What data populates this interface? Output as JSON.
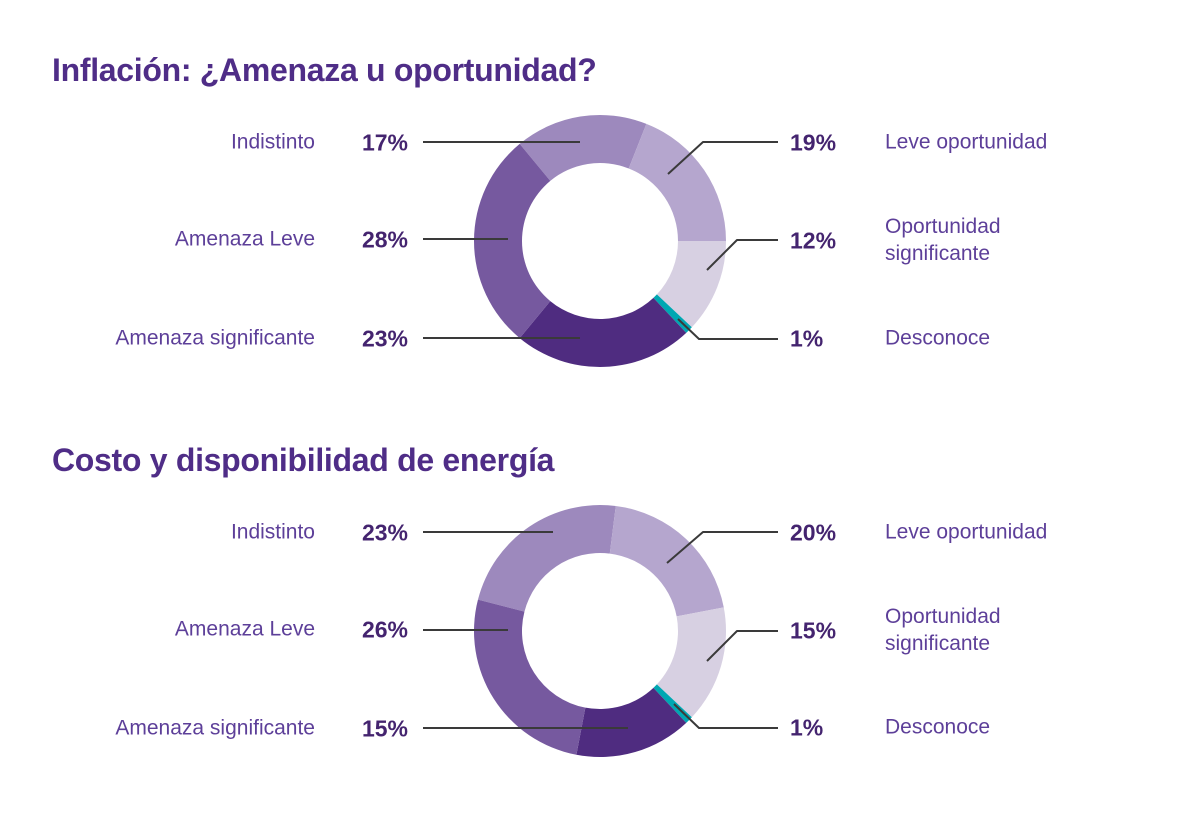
{
  "colors": {
    "background": "#ffffff",
    "title_text": "#4f2d87",
    "category_text": "#5d3f99",
    "value_text": "#44246f",
    "leader_line": "#3a3a3a"
  },
  "chart_data": [
    {
      "type": "donut",
      "title": "Inflación: ¿Amenaza u oportunidad?",
      "start_angle_deg": -39.6,
      "legend_position": "sides",
      "segments": [
        {
          "label": "Indistinto",
          "value": 17,
          "value_label": "17%",
          "color": "#9d89bd",
          "label_side": "left"
        },
        {
          "label": "Leve oportunidad",
          "value": 19,
          "value_label": "19%",
          "color": "#b5a6ce",
          "label_side": "right"
        },
        {
          "label": "Oportunidad significante",
          "value": 12,
          "value_label": "12%",
          "color": "#d7d0e2",
          "label_side": "right"
        },
        {
          "label": "Desconoce",
          "value": 1,
          "value_label": "1%",
          "color": "#00a7b2",
          "label_side": "right"
        },
        {
          "label": "Amenaza significante",
          "value": 23,
          "value_label": "23%",
          "color": "#4f2c80",
          "label_side": "left"
        },
        {
          "label": "Amenaza Leve",
          "value": 28,
          "value_label": "28%",
          "color": "#76599f",
          "label_side": "left"
        }
      ]
    },
    {
      "type": "donut",
      "title": "Costo y disponibilidad de energía",
      "start_angle_deg": -75.6,
      "legend_position": "sides",
      "segments": [
        {
          "label": "Indistinto",
          "value": 23,
          "value_label": "23%",
          "color": "#9d89bd",
          "label_side": "left"
        },
        {
          "label": "Leve oportunidad",
          "value": 20,
          "value_label": "20%",
          "color": "#b5a6ce",
          "label_side": "right"
        },
        {
          "label": "Oportunidad significante",
          "value": 15,
          "value_label": "15%",
          "color": "#d7d0e2",
          "label_side": "right"
        },
        {
          "label": "Desconoce",
          "value": 1,
          "value_label": "1%",
          "color": "#00a7b2",
          "label_side": "right"
        },
        {
          "label": "Amenaza significante",
          "value": 15,
          "value_label": "15%",
          "color": "#4f2c80",
          "label_side": "left"
        },
        {
          "label": "Amenaza Leve",
          "value": 26,
          "value_label": "26%",
          "color": "#76599f",
          "label_side": "left"
        }
      ]
    }
  ]
}
